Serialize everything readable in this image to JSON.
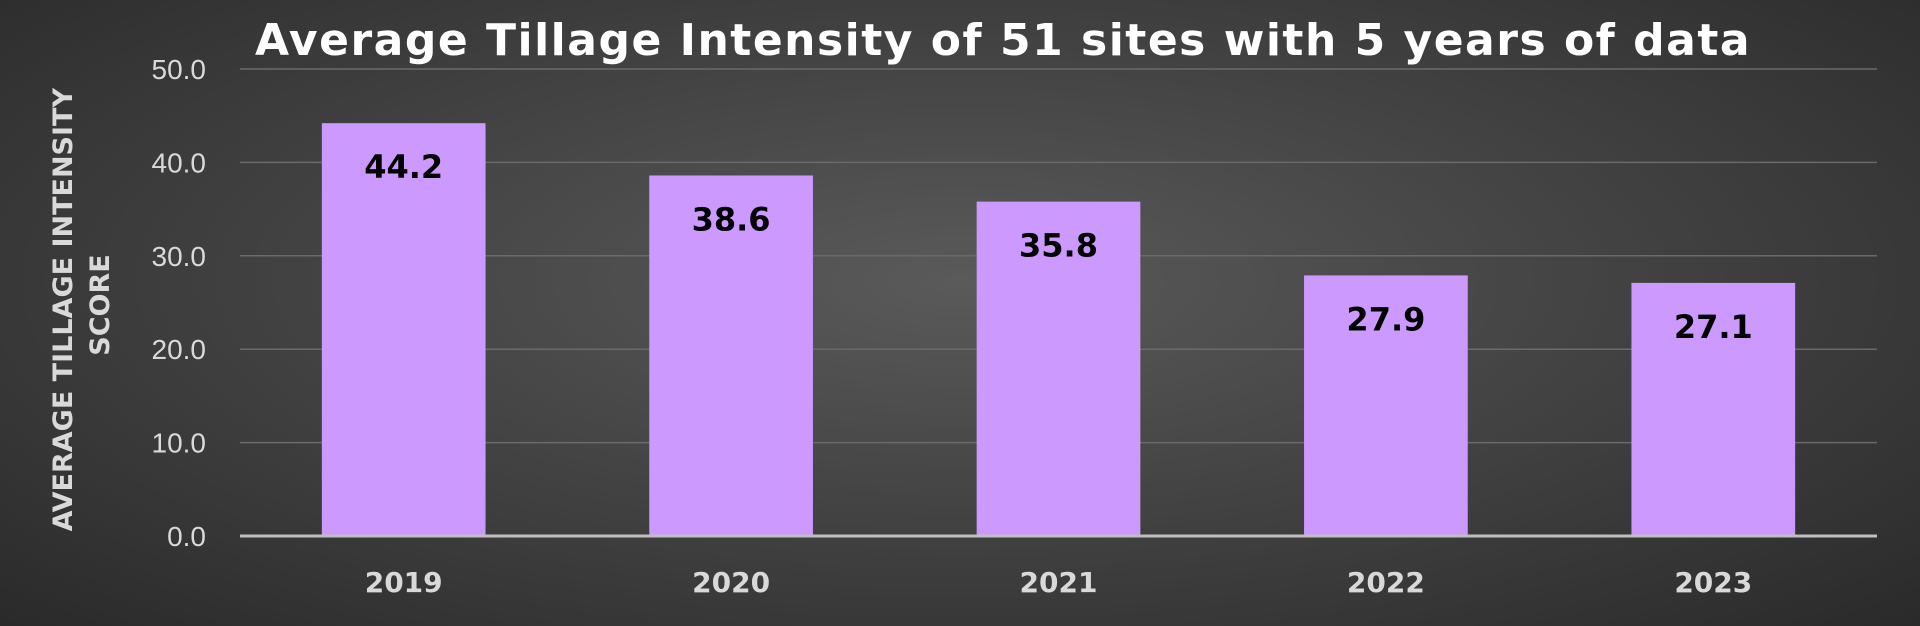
{
  "chart_data": {
    "type": "bar",
    "title": "Average Tillage Intensity of 51 sites with 5 years of data",
    "ylabel": [
      "AVERAGE TILLAGE INTENSITY",
      "SCORE"
    ],
    "xlabel": "",
    "categories": [
      "2019",
      "2020",
      "2021",
      "2022",
      "2023"
    ],
    "values": [
      44.2,
      38.6,
      35.8,
      27.9,
      27.1
    ],
    "data_labels": [
      "44.2",
      "38.6",
      "35.8",
      "27.9",
      "27.1"
    ],
    "ylim": [
      0,
      50
    ],
    "yticks": [
      0,
      10,
      20,
      30,
      40,
      50
    ],
    "ytick_labels": [
      "0.0",
      "10.0",
      "20.0",
      "30.0",
      "40.0",
      "50.0"
    ],
    "grid": true,
    "legend": "none",
    "bar_color": "#cc99ff"
  }
}
